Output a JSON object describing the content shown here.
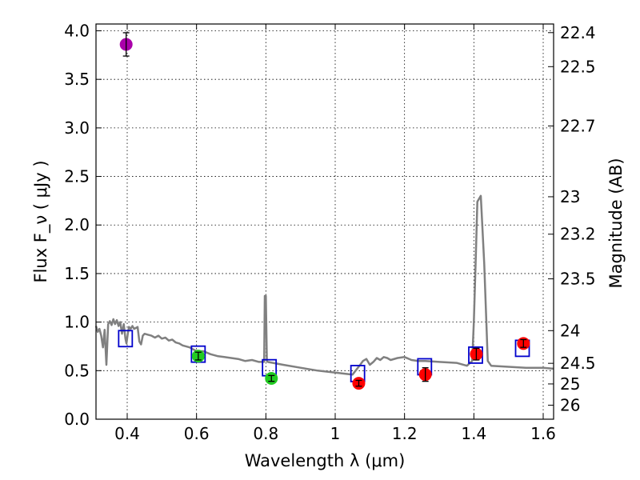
{
  "chart_data": {
    "type": "scatter",
    "title": "",
    "xlabel": "Wavelength  λ (μm)",
    "ylabel": "Flux  F_ν  ( μJy )",
    "ylabel_right": "Magnitude (AB)",
    "xlim": [
      0.31,
      1.63
    ],
    "ylim": [
      0.0,
      4.07
    ],
    "grid": true,
    "x_ticks": [
      0.4,
      0.6,
      0.8,
      1.0,
      1.2,
      1.4,
      1.6
    ],
    "x_tick_labels": [
      "0.4",
      "0.6",
      "0.8",
      "1",
      "1.2",
      "1.4",
      "1.6"
    ],
    "y_ticks": [
      0.0,
      0.5,
      1.0,
      1.5,
      2.0,
      2.5,
      3.0,
      3.5,
      4.0
    ],
    "y_tick_labels": [
      "0.0",
      "0.5",
      "1.0",
      "1.5",
      "2.0",
      "2.5",
      "3.0",
      "3.5",
      "4.0"
    ],
    "right_ticks": [
      {
        "mag": 22.4,
        "label": "22.4"
      },
      {
        "mag": 22.5,
        "label": "22.5"
      },
      {
        "mag": 22.7,
        "label": "22.7"
      },
      {
        "mag": 23.0,
        "label": "23"
      },
      {
        "mag": 23.2,
        "label": "23.2"
      },
      {
        "mag": 23.5,
        "label": "23.5"
      },
      {
        "mag": 24.0,
        "label": "24"
      },
      {
        "mag": 24.5,
        "label": "24.5"
      },
      {
        "mag": 25.0,
        "label": "25"
      },
      {
        "mag": 26.0,
        "label": "26"
      }
    ],
    "sed_model": {
      "name": "SED model",
      "color": "#808080",
      "x": [
        0.31,
        0.315,
        0.32,
        0.325,
        0.33,
        0.335,
        0.34,
        0.345,
        0.35,
        0.355,
        0.36,
        0.365,
        0.37,
        0.375,
        0.38,
        0.385,
        0.39,
        0.395,
        0.398,
        0.402,
        0.405,
        0.41,
        0.415,
        0.42,
        0.43,
        0.435,
        0.44,
        0.445,
        0.45,
        0.46,
        0.47,
        0.48,
        0.49,
        0.5,
        0.51,
        0.52,
        0.53,
        0.54,
        0.55,
        0.56,
        0.58,
        0.6,
        0.62,
        0.64,
        0.66,
        0.68,
        0.7,
        0.72,
        0.74,
        0.76,
        0.78,
        0.795,
        0.797,
        0.8,
        0.803,
        0.805,
        0.85,
        0.9,
        0.95,
        1.0,
        1.05,
        1.07,
        1.08,
        1.09,
        1.1,
        1.11,
        1.12,
        1.13,
        1.14,
        1.15,
        1.16,
        1.18,
        1.2,
        1.22,
        1.24,
        1.26,
        1.3,
        1.35,
        1.38,
        1.395,
        1.4,
        1.405,
        1.41,
        1.42,
        1.43,
        1.44,
        1.45,
        1.5,
        1.55,
        1.6,
        1.63
      ],
      "y": [
        0.96,
        0.9,
        0.93,
        0.86,
        0.74,
        0.92,
        0.56,
        0.98,
        1.01,
        0.97,
        1.03,
        0.98,
        1.02,
        0.96,
        1.0,
        0.88,
        0.98,
        0.83,
        0.78,
        0.89,
        0.95,
        0.93,
        0.96,
        0.93,
        0.95,
        0.8,
        0.77,
        0.86,
        0.88,
        0.87,
        0.86,
        0.84,
        0.86,
        0.83,
        0.84,
        0.81,
        0.82,
        0.79,
        0.78,
        0.76,
        0.74,
        0.7,
        0.7,
        0.67,
        0.65,
        0.64,
        0.63,
        0.62,
        0.6,
        0.61,
        0.59,
        0.59,
        1.27,
        1.27,
        0.6,
        0.59,
        0.56,
        0.53,
        0.5,
        0.48,
        0.46,
        0.55,
        0.6,
        0.62,
        0.56,
        0.59,
        0.63,
        0.61,
        0.64,
        0.63,
        0.61,
        0.63,
        0.64,
        0.61,
        0.6,
        0.6,
        0.59,
        0.58,
        0.55,
        0.6,
        1.0,
        1.6,
        2.24,
        2.3,
        1.6,
        0.6,
        0.55,
        0.54,
        0.53,
        0.53,
        0.52
      ]
    },
    "series": [
      {
        "name": "model-bandpass",
        "marker": "open-square",
        "color": "#0000cc",
        "x": [
          0.395,
          0.605,
          0.81,
          1.065,
          1.258,
          1.405,
          1.54
        ],
        "y": [
          0.83,
          0.67,
          0.53,
          0.47,
          0.54,
          0.66,
          0.73
        ]
      },
      {
        "name": "observed-purple",
        "marker": "circle",
        "color": "#aa00aa",
        "x": [
          0.397
        ],
        "y": [
          3.86
        ],
        "yerr": [
          0.12
        ]
      },
      {
        "name": "observed-green",
        "marker": "circle",
        "color": "#22cc22",
        "x": [
          0.605,
          0.816
        ],
        "y": [
          0.65,
          0.42
        ],
        "yerr": [
          0.04,
          0.03
        ]
      },
      {
        "name": "observed-red",
        "marker": "circle",
        "color": "#ff0000",
        "x": [
          1.068,
          1.26,
          1.407,
          1.543
        ],
        "y": [
          0.37,
          0.46,
          0.67,
          0.78
        ],
        "yerr": [
          0.03,
          0.07,
          0.06,
          0.04
        ]
      }
    ]
  }
}
